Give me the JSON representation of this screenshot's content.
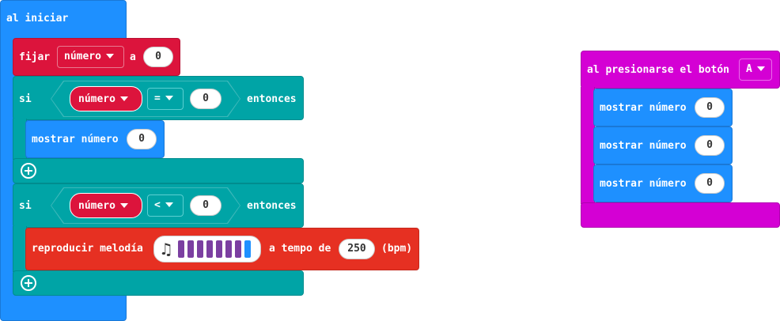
{
  "on_start": {
    "label": "al iniciar",
    "set_block": {
      "label": "fijar",
      "variable": "número",
      "to_label": "a",
      "value": "0"
    },
    "if1": {
      "if_label": "si",
      "variable": "número",
      "operator": "=",
      "value": "0",
      "then_label": "entonces",
      "body": {
        "label": "mostrar número",
        "value": "0"
      }
    },
    "if2": {
      "if_label": "si",
      "variable": "número",
      "operator": "<",
      "value": "0",
      "then_label": "entonces",
      "body": {
        "label": "reproducir melodía",
        "tempo_label": "a tempo de",
        "tempo": "250",
        "unit": "(bpm)",
        "note_colors": [
          "#7b3fa1",
          "#7b3fa1",
          "#7b3fa1",
          "#7b3fa1",
          "#7b3fa1",
          "#7b3fa1",
          "#7b3fa1",
          "#1e90ff"
        ]
      }
    }
  },
  "button_event": {
    "label": "al presionarse el botón",
    "button": "A",
    "items": [
      {
        "label": "mostrar número",
        "value": "0"
      },
      {
        "label": "mostrar número",
        "value": "0"
      },
      {
        "label": "mostrar número",
        "value": "0"
      }
    ]
  },
  "colors": {
    "on_start": "#1e90ff",
    "variable": "#dc143c",
    "logic": "#00a4a6",
    "music": "#e63022",
    "input": "#d400d4"
  }
}
